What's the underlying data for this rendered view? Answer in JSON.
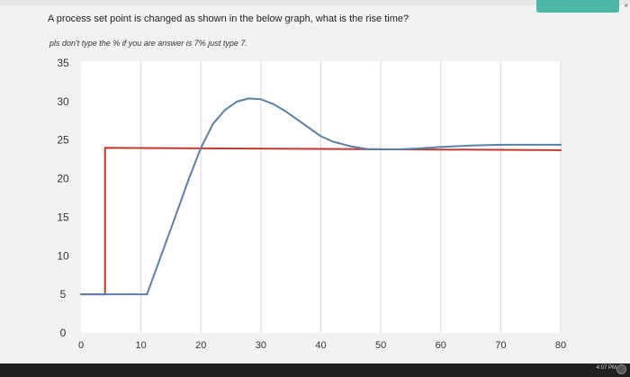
{
  "question": {
    "text": "A process set point is changed as shown in the below graph, what is the rise time?",
    "note": "pls don't type the % if you are answer is 7% just type 7."
  },
  "taskbar": {
    "clock": "4:07 PM"
  },
  "chart_data": {
    "type": "line",
    "xlim": [
      0,
      80
    ],
    "ylim": [
      0,
      35
    ],
    "grid": true,
    "xticks": [
      0,
      10,
      20,
      30,
      40,
      50,
      60,
      70,
      80
    ],
    "yticks": [
      0,
      5,
      10,
      15,
      20,
      25,
      30,
      35
    ],
    "series": [
      {
        "color": "#c0392b",
        "x": [
          0,
          4,
          4,
          80
        ],
        "y": [
          5,
          5,
          24,
          23.7
        ]
      },
      {
        "color": "#5a7fa8",
        "x": [
          0,
          11,
          15,
          18,
          20,
          22,
          24,
          26,
          28,
          30,
          32,
          34,
          36,
          38,
          40,
          42,
          45,
          48,
          50,
          53,
          56,
          60,
          65,
          70,
          75,
          80
        ],
        "y": [
          5,
          5,
          13.5,
          20,
          24,
          27.1,
          28.9,
          30,
          30.4,
          30.3,
          29.7,
          28.8,
          27.7,
          26.6,
          25.5,
          24.8,
          24.2,
          23.8,
          23.8,
          23.8,
          23.9,
          24.1,
          24.3,
          24.4,
          24.4,
          24.4
        ]
      }
    ]
  }
}
